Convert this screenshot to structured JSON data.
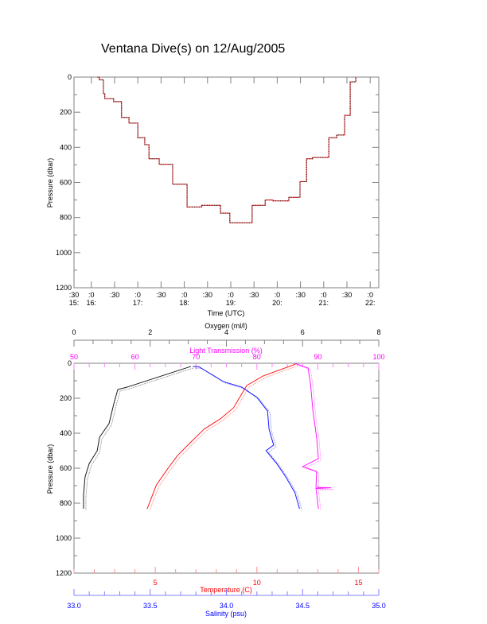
{
  "title": "Ventana Dive(s) on 12/Aug/2005",
  "colors": {
    "oxygen": "#000000",
    "light": "#ff00ff",
    "temperature": "#ff0000",
    "salinity": "#0000ff",
    "axis": "#808080"
  },
  "chart_data": [
    {
      "type": "line",
      "title": "Ventana Dive(s) on 12/Aug/2005",
      "xlabel": "Time (UTC)",
      "ylabel": "Pressure (dbar)",
      "xlim_hours": [
        15.627,
        22.185
      ],
      "ylim": [
        1200,
        0
      ],
      "y_ticks": [
        0,
        200,
        400,
        600,
        800,
        1000,
        1200
      ],
      "x_ticks": [
        {
          "t": 15.5,
          "min": ":30",
          "hr": "15:"
        },
        {
          "t": 16.0,
          "min": ":0",
          "hr": "16:"
        },
        {
          "t": 16.5,
          "min": ":30",
          "hr": ""
        },
        {
          "t": 17.0,
          "min": ":0",
          "hr": "17:"
        },
        {
          "t": 17.5,
          "min": ":30",
          "hr": ""
        },
        {
          "t": 18.0,
          "min": ":0",
          "hr": "18:"
        },
        {
          "t": 18.5,
          "min": ":30",
          "hr": ""
        },
        {
          "t": 19.0,
          "min": ":0",
          "hr": "19:"
        },
        {
          "t": 19.5,
          "min": ":30",
          "hr": ""
        },
        {
          "t": 20.0,
          "min": ":0",
          "hr": "20:"
        },
        {
          "t": 20.5,
          "min": ":30",
          "hr": ""
        },
        {
          "t": 21.0,
          "min": ":0",
          "hr": "21:"
        },
        {
          "t": 21.5,
          "min": ":30",
          "hr": ""
        },
        {
          "t": 22.0,
          "min": ":0",
          "hr": "22:"
        }
      ],
      "series": [
        {
          "name": "Pressure",
          "time_hours": [
            16.13,
            16.17,
            16.26,
            16.29,
            16.48,
            16.65,
            16.81,
            17.0,
            17.15,
            17.24,
            17.46,
            17.75,
            18.06,
            18.37,
            18.78,
            18.98,
            19.46,
            19.74,
            19.91,
            20.25,
            20.49,
            20.63,
            20.76,
            21.11,
            21.28,
            21.45,
            21.57,
            21.69
          ],
          "pressure": [
            0,
            15,
            95,
            122,
            140,
            230,
            262,
            345,
            385,
            465,
            497,
            610,
            740,
            730,
            775,
            830,
            730,
            700,
            705,
            685,
            595,
            465,
            458,
            345,
            330,
            218,
            27,
            0
          ]
        }
      ]
    },
    {
      "type": "line",
      "ylabel": "Pressure (dbar)",
      "ylim": [
        1200,
        0
      ],
      "y_ticks": [
        0,
        200,
        400,
        600,
        800,
        1000,
        1200
      ],
      "axes": {
        "oxygen": {
          "label": "Oxygen (ml/l)",
          "range": [
            0,
            8
          ],
          "ticks": [
            "0",
            "2",
            "4",
            "6",
            "8"
          ],
          "tick_values": [
            0,
            2,
            4,
            6,
            8
          ],
          "minor": 0.5
        },
        "light": {
          "label": "Light Transmission (%)",
          "range": [
            50,
            100
          ],
          "ticks": [
            "50",
            "60",
            "70",
            "80",
            "90",
            "100"
          ],
          "tick_values": [
            50,
            60,
            70,
            80,
            90,
            100
          ],
          "minor": 2.5
        },
        "temperature": {
          "label": "Temperature (C)",
          "range": [
            1,
            16
          ],
          "ticks": [
            "5",
            "10",
            "15"
          ],
          "tick_values": [
            5,
            10,
            15
          ],
          "minor": 1
        },
        "salinity": {
          "label": "Salinity (psu)",
          "range": [
            33.0,
            35.0
          ],
          "ticks": [
            "33.0",
            "33.5",
            "34.0",
            "34.5",
            "35.0"
          ],
          "tick_values": [
            33.0,
            33.5,
            34.0,
            34.5,
            35.0
          ],
          "minor": 0.1
        }
      },
      "series": [
        {
          "name": "Oxygen",
          "axis": "oxygen",
          "pressure": [
            18,
            136,
            150,
            227,
            345,
            423,
            500,
            573,
            650,
            755,
            832
          ],
          "values": [
            3.07,
            1.4,
            1.15,
            1.05,
            0.92,
            0.67,
            0.61,
            0.4,
            0.29,
            0.25,
            0.25
          ]
        },
        {
          "name": "Temperature",
          "axis": "temperature",
          "pressure": [
            5,
            73,
            127,
            255,
            318,
            377,
            468,
            527,
            605,
            695,
            832
          ],
          "values": [
            11.9,
            10.3,
            9.5,
            8.85,
            8.2,
            7.4,
            6.6,
            6.1,
            5.6,
            5.06,
            4.6
          ]
        },
        {
          "name": "Salinity",
          "axis": "salinity",
          "pressure": [
            18,
            20,
            105,
            136,
            195,
            273,
            377,
            468,
            500,
            573,
            650,
            741,
            832
          ],
          "values": [
            33.78,
            33.82,
            33.98,
            34.1,
            34.2,
            34.27,
            34.28,
            34.31,
            34.26,
            34.33,
            34.39,
            34.45,
            34.48
          ]
        },
        {
          "name": "Light Transmission",
          "axis": "light",
          "pressure": [
            0,
            27,
            118,
            273,
            423,
            545,
            591,
            618,
            709,
            712,
            716,
            832
          ],
          "values": [
            86.2,
            88.4,
            88.8,
            89.2,
            89.8,
            90.1,
            87.5,
            89.8,
            89.7,
            92.2,
            89.7,
            90.1
          ]
        }
      ]
    }
  ]
}
